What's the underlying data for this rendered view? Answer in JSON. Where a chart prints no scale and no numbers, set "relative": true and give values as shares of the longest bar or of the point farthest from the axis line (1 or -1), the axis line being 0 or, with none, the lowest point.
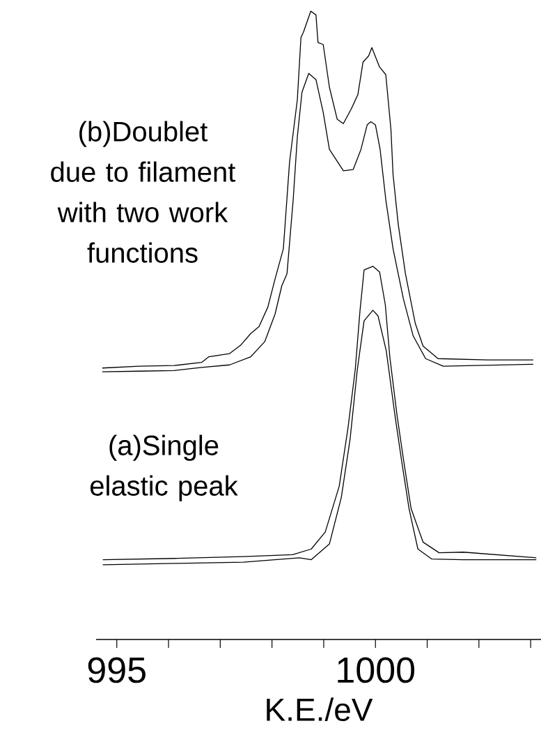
{
  "chart_data": {
    "type": "line",
    "relative": true,
    "xlabel": "K.E./eV",
    "xlim": [
      994.6,
      1003.2
    ],
    "xticks": [
      995,
      {
        "value": 996,
        "label": null
      },
      {
        "value": 997,
        "label": null
      },
      {
        "value": 998,
        "label": null
      },
      {
        "value": 999,
        "label": null
      },
      1000,
      {
        "value": 1001,
        "label": null
      },
      {
        "value": 1002,
        "label": null
      },
      {
        "value": 1003,
        "label": null
      }
    ],
    "annotations": [
      "(b)Doublet due to filament with two work functions",
      "(a)Single elastic peak"
    ],
    "series": [
      {
        "color": "#000000",
        "x": [
          994.72,
          995.43,
          996.11,
          996.64,
          996.78,
          997.18,
          997.39,
          997.59,
          997.75,
          997.92,
          998.06,
          998.22,
          998.34,
          998.49,
          998.56,
          998.61,
          998.75,
          998.85,
          998.89,
          998.99,
          999.11,
          999.26,
          999.38,
          999.53,
          999.66,
          999.76,
          999.87,
          999.93,
          1000.08,
          1000.2,
          1000.3,
          1000.34,
          1000.44,
          1000.58,
          1000.77,
          1000.92,
          1001.21,
          1002.17,
          1003.05
        ],
        "values": [
          0.432,
          0.435,
          0.436,
          0.441,
          0.45,
          0.455,
          0.468,
          0.487,
          0.498,
          0.529,
          0.574,
          0.622,
          0.76,
          0.859,
          0.958,
          0.967,
          1,
          0.994,
          0.95,
          0.947,
          0.879,
          0.828,
          0.821,
          0.844,
          0.867,
          0.919,
          0.929,
          0.942,
          0.911,
          0.899,
          0.811,
          0.74,
          0.661,
          0.582,
          0.503,
          0.467,
          0.447,
          0.445,
          0.445
        ]
      },
      {
        "color": "#000000",
        "x": [
          994.72,
          995.43,
          996.11,
          996.64,
          997.18,
          997.59,
          997.86,
          998.06,
          998.19,
          998.29,
          998.41,
          998.49,
          998.58,
          998.71,
          998.85,
          998.99,
          999.11,
          999.38,
          999.57,
          999.72,
          999.84,
          999.91,
          1000.0,
          1000.09,
          1000.2,
          1000.34,
          1000.54,
          1000.73,
          1000.97,
          1001.31,
          1003.05
        ],
        "values": [
          0.426,
          0.427,
          0.428,
          0.433,
          0.437,
          0.45,
          0.474,
          0.518,
          0.563,
          0.582,
          0.7,
          0.8,
          0.871,
          0.901,
          0.891,
          0.839,
          0.78,
          0.746,
          0.748,
          0.78,
          0.819,
          0.824,
          0.819,
          0.78,
          0.7,
          0.622,
          0.542,
          0.483,
          0.447,
          0.435,
          0.438
        ]
      },
      {
        "color": "#000000",
        "x": [
          994.73,
          996.11,
          997.45,
          998.4,
          998.76,
          999.03,
          999.3,
          999.47,
          999.61,
          999.7,
          999.78,
          999.95,
          1000.08,
          1000.19,
          1000.28,
          1000.42,
          1000.55,
          1000.69,
          1000.92,
          1001.23,
          1001.7,
          1003.11
        ],
        "values": [
          0.127,
          0.129,
          0.132,
          0.135,
          0.144,
          0.171,
          0.244,
          0.337,
          0.43,
          0.522,
          0.588,
          0.594,
          0.585,
          0.533,
          0.448,
          0.355,
          0.282,
          0.208,
          0.155,
          0.138,
          0.139,
          0.13
        ]
      },
      {
        "color": "#000000",
        "x": [
          994.73,
          996.11,
          997.45,
          998.53,
          998.76,
          999.11,
          999.34,
          999.51,
          999.65,
          999.78,
          999.95,
          1000.05,
          1000.21,
          1000.38,
          1000.51,
          1000.65,
          1000.82,
          1001.09,
          1001.7,
          1003.11
        ],
        "values": [
          0.119,
          0.121,
          0.123,
          0.13,
          0.127,
          0.152,
          0.226,
          0.319,
          0.43,
          0.507,
          0.524,
          0.515,
          0.459,
          0.355,
          0.282,
          0.208,
          0.144,
          0.128,
          0.127,
          0.127
        ]
      }
    ]
  }
}
